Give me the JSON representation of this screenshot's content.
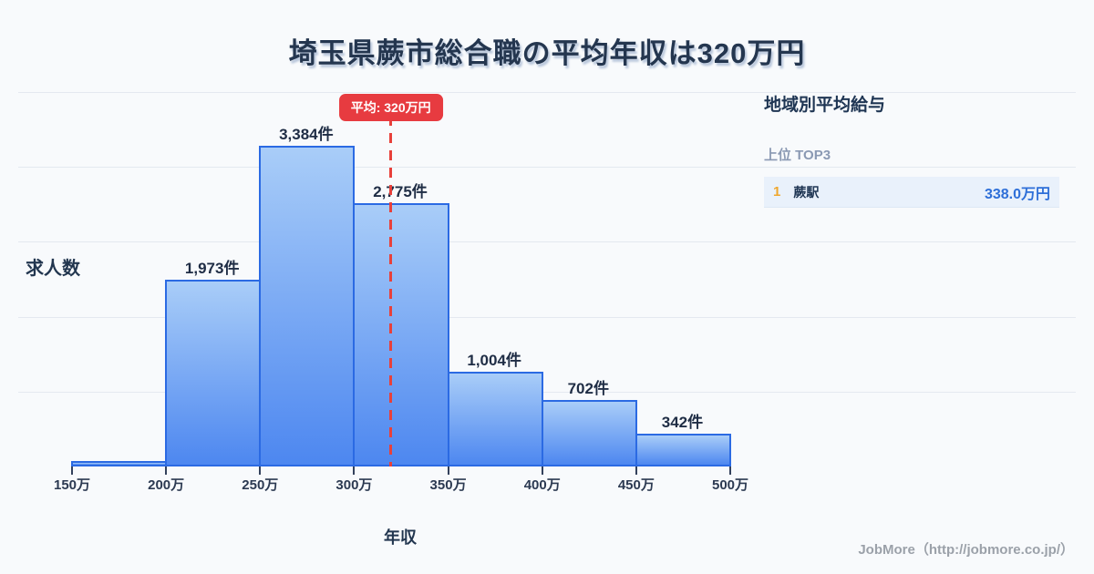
{
  "title": "埼玉県蕨市総合職の平均年収は320万円",
  "chart_data": {
    "type": "bar",
    "title": "埼玉県蕨市総合職の平均年収は320万円",
    "xlabel": "年収",
    "ylabel": "求人数",
    "unit": "件",
    "categories": [
      "150万",
      "200万",
      "250万",
      "300万",
      "350万",
      "400万",
      "450万",
      "500万"
    ],
    "bins": [
      {
        "range": "150万-200万",
        "value": 0,
        "label": ""
      },
      {
        "range": "200万-250万",
        "value": 1973,
        "label": "1,973件"
      },
      {
        "range": "250万-300万",
        "value": 3384,
        "label": "3,384件"
      },
      {
        "range": "300万-350万",
        "value": 2775,
        "label": "2,775件"
      },
      {
        "range": "350万-400万",
        "value": 1004,
        "label": "1,004件"
      },
      {
        "range": "400万-450万",
        "value": 702,
        "label": "702件"
      },
      {
        "range": "450万-500万",
        "value": 342,
        "label": "342件"
      }
    ],
    "x_range_man": [
      150,
      500
    ],
    "ylim": [
      0,
      3950
    ],
    "grid": true,
    "legend": "none",
    "average_line": {
      "label": "平均: 320万円",
      "value_man": 320
    }
  },
  "side_panel": {
    "heading": "地域別平均給与",
    "subheading": "上位 TOP3",
    "rows": [
      {
        "rank": "1",
        "name": "蕨駅",
        "value": "338.0万円"
      }
    ]
  },
  "footer": {
    "credit": "JobMore（http://jobmore.co.jp/）"
  },
  "colors": {
    "background": "#f8fafc",
    "title_text": "#24364f",
    "bar_gradient_top": "#a9cdf8",
    "bar_gradient_bottom": "#4d87f0",
    "bar_border": "#2b6ae3",
    "average_red": "#e8403a",
    "gridline": "#e4e9f0",
    "rank_gold": "#efa72e",
    "row_background": "#e9f1fb",
    "value_blue": "#2e6fd8",
    "muted_gray": "#8a99b3",
    "footer_gray": "#9ba1a9"
  }
}
